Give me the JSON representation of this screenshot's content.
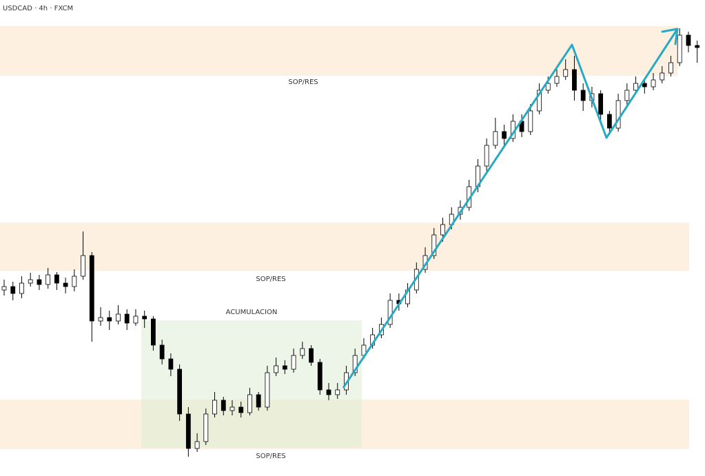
{
  "chart_data": {
    "type": "candlestick",
    "title": "USDCAD · 4h · FXCM",
    "ylim": [
      0,
      691
    ],
    "open": [
      270,
      275,
      265,
      280,
      285,
      278,
      292,
      280,
      275,
      290,
      320,
      225,
      230,
      225,
      235,
      222,
      232,
      228,
      190,
      170,
      155,
      90,
      40,
      50,
      90,
      110,
      95,
      100,
      92,
      118,
      100,
      150,
      160,
      155,
      175,
      185,
      165,
      125,
      118,
      125,
      150,
      175,
      190,
      205,
      220,
      255,
      250,
      270,
      300,
      320,
      350,
      365,
      380,
      390,
      420,
      450,
      480,
      500,
      490,
      515,
      500,
      530,
      560,
      570,
      580,
      590,
      560,
      545,
      555,
      525,
      505,
      545,
      560,
      570,
      565,
      575,
      585,
      600,
      640,
      625
    ],
    "high": [
      285,
      282,
      290,
      295,
      292,
      302,
      296,
      288,
      300,
      355,
      325,
      245,
      240,
      248,
      242,
      242,
      240,
      232,
      198,
      178,
      162,
      100,
      62,
      98,
      122,
      115,
      110,
      108,
      128,
      122,
      160,
      172,
      168,
      185,
      195,
      190,
      170,
      135,
      135,
      160,
      185,
      200,
      215,
      230,
      265,
      265,
      280,
      310,
      332,
      360,
      375,
      390,
      400,
      430,
      460,
      490,
      520,
      510,
      525,
      525,
      540,
      570,
      580,
      590,
      605,
      610,
      570,
      565,
      560,
      530,
      555,
      570,
      580,
      578,
      585,
      595,
      610,
      650,
      645,
      632
    ],
    "low": [
      262,
      255,
      258,
      275,
      270,
      272,
      270,
      265,
      268,
      285,
      195,
      218,
      212,
      220,
      212,
      218,
      215,
      182,
      162,
      145,
      80,
      28,
      35,
      45,
      85,
      88,
      88,
      85,
      88,
      95,
      95,
      145,
      148,
      150,
      170,
      160,
      118,
      110,
      112,
      118,
      145,
      170,
      185,
      200,
      215,
      240,
      245,
      265,
      295,
      315,
      340,
      358,
      372,
      385,
      412,
      442,
      475,
      478,
      485,
      492,
      495,
      525,
      555,
      565,
      575,
      545,
      530,
      535,
      512,
      495,
      500,
      538,
      555,
      555,
      560,
      570,
      580,
      595,
      615,
      600
    ],
    "close": [
      275,
      265,
      280,
      285,
      278,
      292,
      280,
      275,
      290,
      320,
      225,
      230,
      225,
      235,
      222,
      232,
      228,
      190,
      170,
      155,
      90,
      40,
      50,
      90,
      110,
      95,
      100,
      92,
      118,
      100,
      150,
      160,
      155,
      175,
      185,
      165,
      125,
      118,
      125,
      150,
      175,
      190,
      205,
      220,
      255,
      250,
      270,
      300,
      320,
      350,
      365,
      380,
      390,
      420,
      450,
      480,
      500,
      490,
      515,
      500,
      530,
      560,
      570,
      580,
      590,
      560,
      545,
      555,
      525,
      505,
      545,
      560,
      570,
      565,
      575,
      585,
      600,
      640,
      625,
      622
    ],
    "zones": [
      {
        "label": "SOP/RES",
        "range": [
          581,
          653
        ]
      },
      {
        "label": "SOP/RES",
        "range": [
          298,
          368
        ]
      },
      {
        "label": "SOP/RES",
        "range": [
          39,
          111
        ]
      }
    ],
    "box": {
      "label": "ACUMULACION",
      "range": [
        41,
        226
      ]
    },
    "trend_line": {
      "values": [
        128,
        626,
        491,
        649
      ],
      "color": "#26a9c4"
    }
  }
}
